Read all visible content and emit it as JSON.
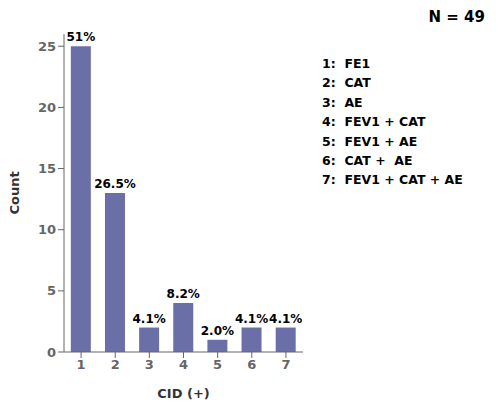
{
  "chart_data": {
    "type": "bar",
    "categories": [
      "1",
      "2",
      "3",
      "4",
      "5",
      "6",
      "7"
    ],
    "values": [
      25,
      13,
      2,
      4,
      1,
      2,
      2
    ],
    "value_labels": [
      "51%",
      "26.5%",
      "4.1%",
      "8.2%",
      "2.0%",
      "4.1%",
      "4.1%"
    ],
    "data_labels": true,
    "color": "#6B6FA8",
    "xlabel": "CID (+)",
    "ylabel": "Count",
    "ylim": [
      0,
      26
    ],
    "yticks": [
      0,
      5,
      10,
      15,
      20,
      25
    ],
    "grid": false,
    "annotations": [
      "N = 49",
      "1:  FE1",
      "2:  CAT",
      "3:  AE",
      "4:  FEV1 + CAT",
      "5:  FEV1 + AE",
      "6:  CAT +  AE",
      "7:  FEV1 + CAT + AE"
    ]
  }
}
